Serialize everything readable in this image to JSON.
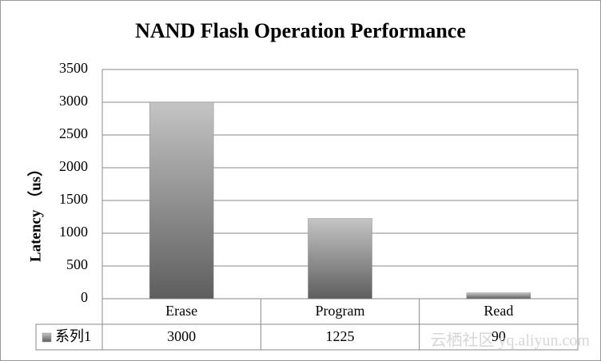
{
  "chart_data": {
    "type": "bar",
    "title": "NAND Flash Operation Performance",
    "y_label": "Latency （us）",
    "categories": [
      "Erase",
      "Program",
      "Read"
    ],
    "series": [
      {
        "name": "系列1",
        "color": "#8c8c8c",
        "values": [
          3000,
          1225,
          90
        ]
      }
    ],
    "ylim": [
      0,
      3500
    ],
    "yticks": [
      0,
      500,
      1000,
      1500,
      2000,
      2500,
      3000,
      3500
    ],
    "grid": true,
    "legend": "data-table",
    "watermark": "云栖社区 yq.aliyun.com"
  }
}
